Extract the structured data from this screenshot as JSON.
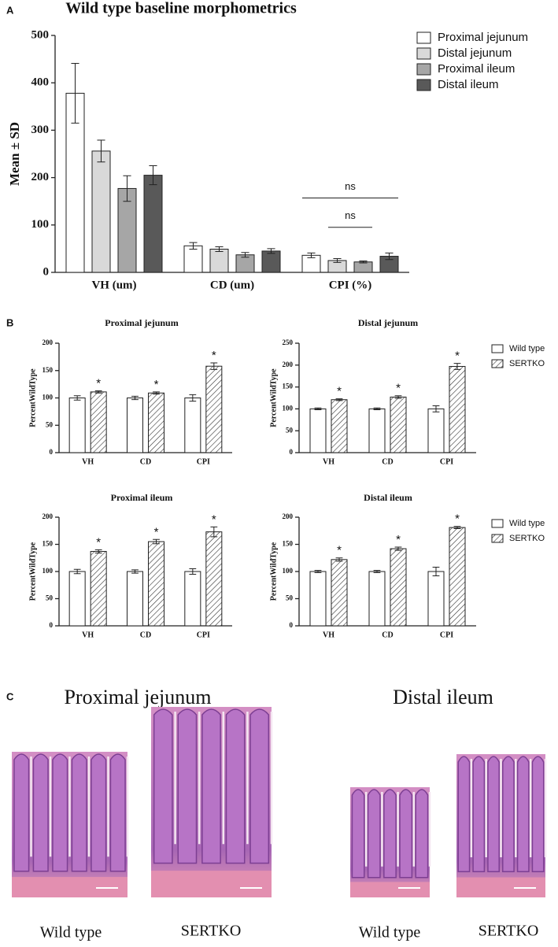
{
  "panel_labels": [
    "A",
    "B",
    "C"
  ],
  "chart_data": [
    {
      "type": "bar",
      "title": "Wild type baseline morphometrics",
      "y_label": "Mean ± SD",
      "categories": [
        "VH (um)",
        "CD (um)",
        "CPI (%)"
      ],
      "series": [
        {
          "name": "Proximal  jejunum",
          "color": "#ffffff",
          "values": [
            378,
            56,
            36
          ],
          "errors": [
            63,
            7,
            5
          ]
        },
        {
          "name": "Distal  jejunum",
          "color": "#d9d9d9",
          "values": [
            256,
            49,
            25
          ],
          "errors": [
            23,
            5,
            4
          ]
        },
        {
          "name": "Proximal ileum",
          "color": "#a6a6a6",
          "values": [
            177,
            37,
            22
          ],
          "errors": [
            27,
            5,
            2
          ]
        },
        {
          "name": "Distal ileum",
          "color": "#595959",
          "values": [
            205,
            45,
            34
          ],
          "errors": [
            20,
            5,
            7
          ]
        }
      ],
      "ylim": [
        0,
        500
      ],
      "yticks": [
        0,
        100,
        200,
        300,
        400,
        500
      ],
      "grid": false,
      "legend": "top-right",
      "annotations": [
        "ns",
        "ns"
      ]
    },
    {
      "type": "bar",
      "title": "Proximal  jejunum",
      "y_label": "PercentWildType",
      "categories": [
        "VH",
        "CD",
        "CPI"
      ],
      "series": [
        {
          "color": "#ffffff",
          "values": [
            100,
            100,
            100
          ],
          "errors": [
            4,
            3,
            6
          ]
        },
        {
          "color": "#ffffff",
          "pattern": "hatch",
          "values": [
            111,
            109,
            158
          ],
          "errors": [
            2,
            2,
            6
          ],
          "annotations": [
            "*",
            "*",
            "*"
          ]
        }
      ],
      "ylim": [
        0,
        200
      ],
      "yticks": [
        0,
        50,
        100,
        150,
        200
      ],
      "grid": false
    },
    {
      "type": "bar",
      "title": "Distal  jejunum",
      "y_label": "PercentWildType",
      "categories": [
        "VH",
        "CD",
        "CPI"
      ],
      "series": [
        {
          "name": "Wild type",
          "color": "#ffffff",
          "values": [
            100,
            100,
            100
          ],
          "errors": [
            2,
            2,
            7
          ]
        },
        {
          "name": "SERTKO",
          "color": "#ffffff",
          "pattern": "hatch",
          "values": [
            121,
            127,
            197
          ],
          "errors": [
            2,
            3,
            7
          ],
          "annotations": [
            "*",
            "*",
            "*"
          ]
        }
      ],
      "ylim": [
        0,
        250
      ],
      "yticks": [
        0,
        50,
        100,
        150,
        200,
        250
      ],
      "grid": false,
      "legend": "right"
    },
    {
      "type": "bar",
      "title": "Proximal ileum",
      "y_label": "PercentWildType",
      "categories": [
        "VH",
        "CD",
        "CPI"
      ],
      "series": [
        {
          "color": "#ffffff",
          "values": [
            100,
            100,
            100
          ],
          "errors": [
            4,
            3,
            5
          ]
        },
        {
          "color": "#ffffff",
          "pattern": "hatch",
          "values": [
            137,
            155,
            173
          ],
          "errors": [
            3,
            4,
            9
          ],
          "annotations": [
            "*",
            "*",
            "*"
          ]
        }
      ],
      "ylim": [
        0,
        200
      ],
      "yticks": [
        0,
        50,
        100,
        150,
        200
      ],
      "grid": false
    },
    {
      "type": "bar",
      "title": "Distal ileum",
      "y_label": "PercentWildType",
      "categories": [
        "VH",
        "CD",
        "CPI"
      ],
      "series": [
        {
          "name": "Wild type",
          "color": "#ffffff",
          "values": [
            100,
            100,
            100
          ],
          "errors": [
            2,
            2,
            8
          ]
        },
        {
          "name": "SERTKO",
          "color": "#ffffff",
          "pattern": "hatch",
          "values": [
            122,
            142,
            181
          ],
          "errors": [
            3,
            3,
            2
          ],
          "annotations": [
            "*",
            "*",
            "*"
          ]
        }
      ],
      "ylim": [
        0,
        200
      ],
      "yticks": [
        0,
        50,
        100,
        150,
        200
      ],
      "grid": false,
      "legend": "right"
    }
  ],
  "images": {
    "titles": [
      "Proximal  jejunum",
      "Distal ileum"
    ],
    "labels": [
      "Wild type",
      "SERTKO",
      "Wild type",
      "SERTKO"
    ]
  }
}
